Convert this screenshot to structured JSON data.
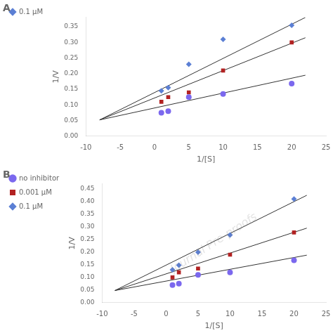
{
  "chart_data": [
    {
      "type": "scatter",
      "title": "A",
      "xlabel": "1/[S]",
      "ylabel": "1/V",
      "xlim": [
        -10,
        25
      ],
      "ylim": [
        0,
        0.38
      ],
      "xticks": [
        -10,
        -5,
        0,
        5,
        10,
        15,
        20,
        25
      ],
      "yticks": [
        {
          "value": 0,
          "label": "0.00"
        },
        0.05,
        {
          "value": 0.1,
          "label": "0.10"
        },
        0.15,
        {
          "value": 0.2,
          "label": "0.20"
        },
        0.25,
        {
          "value": 0.3,
          "label": "0.30"
        },
        0.35
      ],
      "grid": false,
      "legend": "left",
      "series": [
        {
          "x": [
            1,
            2,
            5,
            10,
            20
          ],
          "values": [
            0.075,
            0.08,
            0.125,
            0.135,
            0.168
          ],
          "color": "#7B68EE",
          "marker": "circle"
        },
        {
          "type": "line",
          "x": [
            -8,
            22
          ],
          "values": [
            0.052,
            0.195
          ],
          "color": "#333333"
        },
        {
          "x": [
            1,
            2,
            5,
            10,
            20
          ],
          "values": [
            0.11,
            0.125,
            0.14,
            0.21,
            0.3
          ],
          "color": "#B22222",
          "marker": "square"
        },
        {
          "type": "line",
          "x": [
            -8,
            22
          ],
          "values": [
            0.052,
            0.315
          ],
          "color": "#333333"
        },
        {
          "name": "0.1 μM",
          "x": [
            1,
            2,
            5,
            10,
            20
          ],
          "values": [
            0.145,
            0.155,
            0.23,
            0.31,
            0.355
          ],
          "color": "#5B7FD4",
          "marker": "diamond"
        },
        {
          "type": "line",
          "x": [
            -8,
            22
          ],
          "values": [
            0.052,
            0.38
          ],
          "color": "#333333"
        }
      ]
    },
    {
      "type": "scatter",
      "title": "B",
      "xlabel": "1/[S]",
      "ylabel": "1/V",
      "xlim": [
        -10,
        25
      ],
      "ylim": [
        0,
        0.47
      ],
      "xticks": [
        -10,
        -5,
        0,
        5,
        10,
        15,
        20,
        25
      ],
      "yticks": [
        {
          "value": 0,
          "label": "0.00"
        },
        0.05,
        {
          "value": 0.1,
          "label": "0.10"
        },
        0.15,
        {
          "value": 0.2,
          "label": "0.20"
        },
        0.25,
        {
          "value": 0.3,
          "label": "0.30"
        },
        0.35,
        {
          "value": 0.4,
          "label": "0.40"
        },
        0.45
      ],
      "grid": false,
      "legend": "left",
      "annotation": "Journal Pre-proofs",
      "series": [
        {
          "name": "no inhibitor",
          "x": [
            1,
            2,
            5,
            10,
            20
          ],
          "values": [
            0.07,
            0.075,
            0.11,
            0.12,
            0.168
          ],
          "color": "#7B68EE",
          "marker": "circle"
        },
        {
          "type": "line",
          "x": [
            -8,
            22
          ],
          "values": [
            0.048,
            0.188
          ],
          "color": "#333333"
        },
        {
          "name": "0.001 μM",
          "x": [
            1,
            2,
            5,
            10,
            20
          ],
          "values": [
            0.1,
            0.12,
            0.135,
            0.19,
            0.278
          ],
          "color": "#B22222",
          "marker": "square"
        },
        {
          "type": "line",
          "x": [
            -8,
            22
          ],
          "values": [
            0.048,
            0.295
          ],
          "color": "#333333"
        },
        {
          "name": "0.1 μM",
          "x": [
            1,
            2,
            5,
            10,
            20
          ],
          "values": [
            0.13,
            0.148,
            0.2,
            0.268,
            0.41
          ],
          "color": "#5B7FD4",
          "marker": "diamond"
        },
        {
          "type": "line",
          "x": [
            -8,
            22
          ],
          "values": [
            0.048,
            0.425
          ],
          "color": "#333333"
        }
      ]
    }
  ]
}
